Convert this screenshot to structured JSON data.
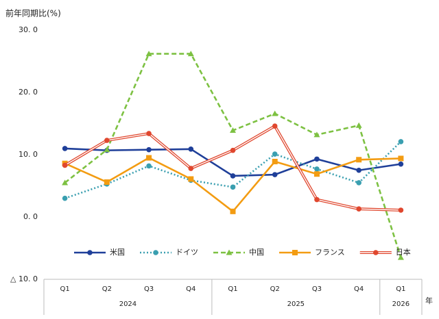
{
  "chart_data": {
    "type": "line",
    "y_label": "前年同期比(%)",
    "x_unit": "年",
    "categories": [
      "Q1",
      "Q2",
      "Q3",
      "Q4",
      "Q1",
      "Q2",
      "Q3",
      "Q4",
      "Q1"
    ],
    "groups": [
      {
        "label": "2024",
        "span": 4
      },
      {
        "label": "2025",
        "span": 4
      },
      {
        "label": "2026",
        "span": 1
      }
    ],
    "ylim": [
      -10,
      30
    ],
    "yticks": [
      {
        "value": 30,
        "label": "30. 0"
      },
      {
        "value": 20,
        "label": "20. 0"
      },
      {
        "value": 10,
        "label": "10. 0"
      },
      {
        "value": 0,
        "label": "0. 0"
      },
      {
        "value": -10,
        "label": "△ 10. 0"
      }
    ],
    "grid": false,
    "series": [
      {
        "name": "米国",
        "color": "#1f3f99",
        "marker": "circle",
        "line_style": "solid",
        "values": [
          11.0,
          10.7,
          10.8,
          10.9,
          6.6,
          6.8,
          9.3,
          7.5,
          8.5
        ]
      },
      {
        "name": "ドイツ",
        "color": "#3a9fb0",
        "marker": "circle",
        "line_style": "dotted",
        "values": [
          3.0,
          5.3,
          8.2,
          5.9,
          4.8,
          10.1,
          7.7,
          5.5,
          12.1
        ]
      },
      {
        "name": "中国",
        "color": "#7dc142",
        "marker": "triangle",
        "line_style": "dashed",
        "values": [
          5.5,
          10.8,
          26.2,
          26.2,
          13.9,
          16.6,
          13.2,
          14.7,
          -6.5
        ]
      },
      {
        "name": "フランス",
        "color": "#f39c12",
        "marker": "square",
        "line_style": "solid",
        "values": [
          8.6,
          5.6,
          9.5,
          6.1,
          0.9,
          8.9,
          6.9,
          9.2,
          9.4
        ]
      },
      {
        "name": "日本",
        "color": "#e0472e",
        "marker": "circle",
        "line_style": "double",
        "values": [
          8.3,
          12.3,
          13.4,
          7.8,
          10.7,
          14.6,
          2.8,
          1.3,
          1.1
        ]
      }
    ]
  }
}
